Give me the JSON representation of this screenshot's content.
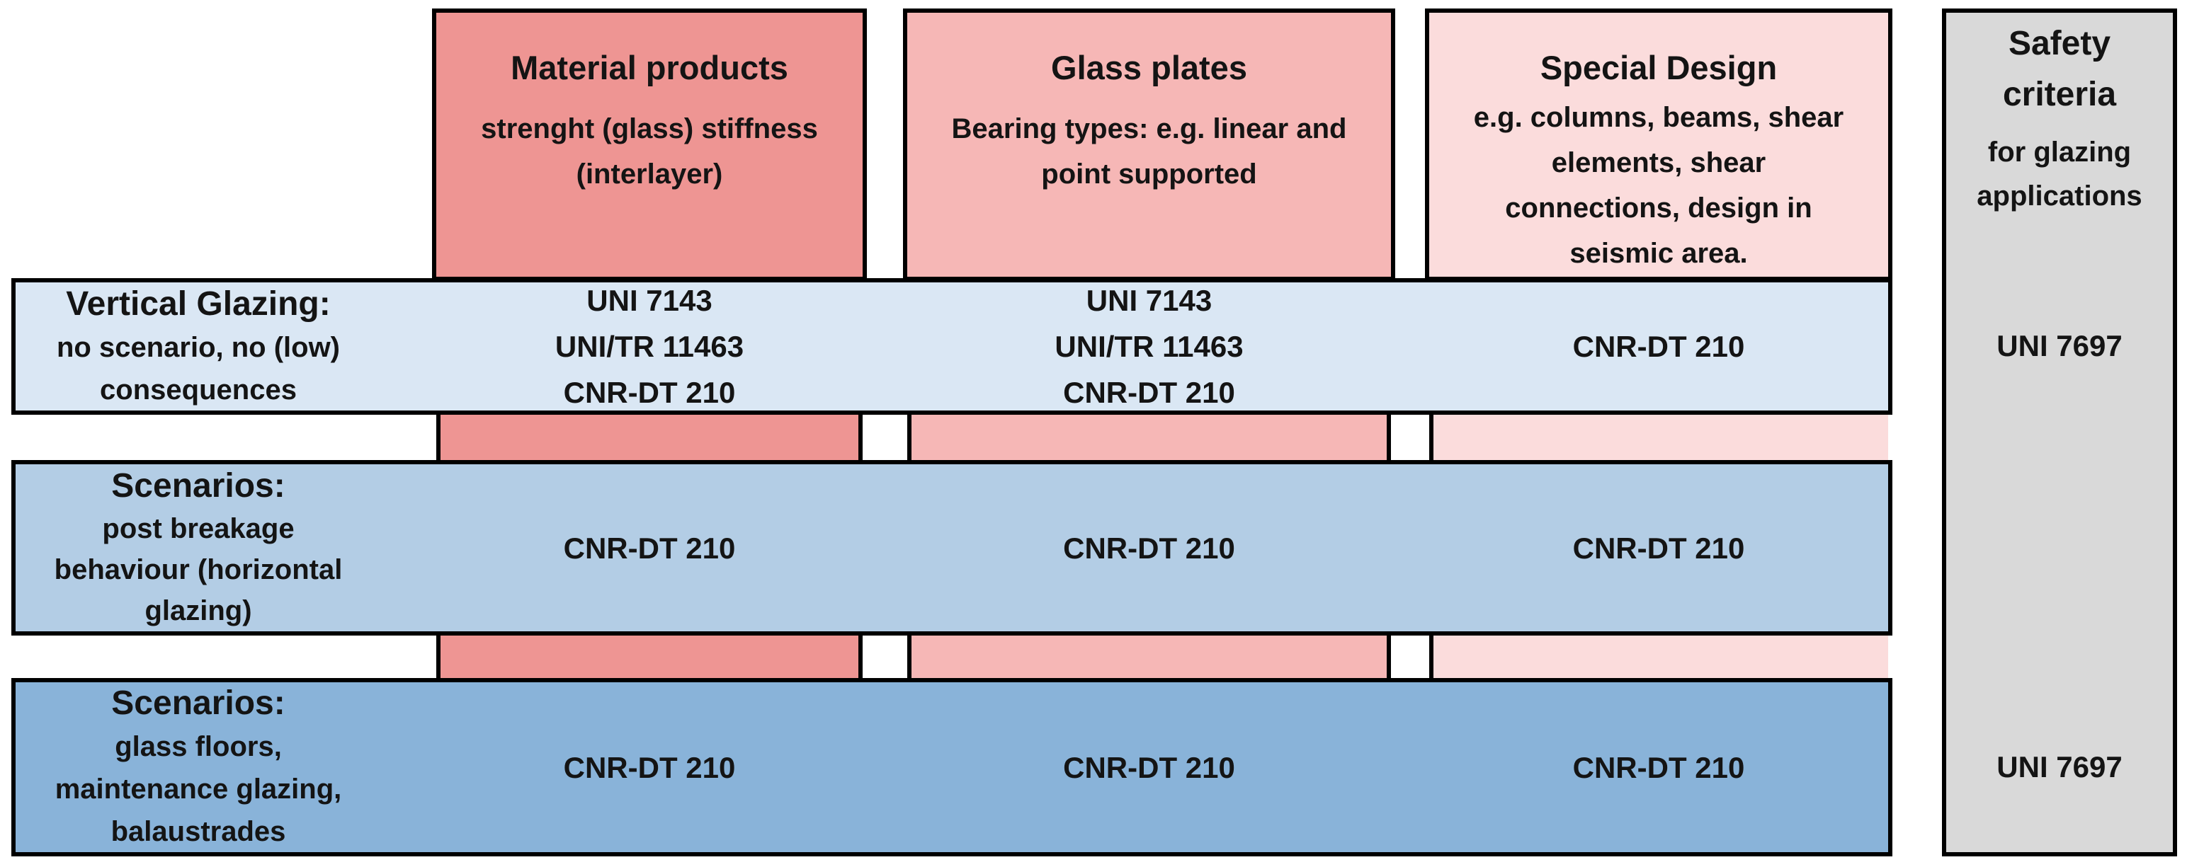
{
  "columns": [
    {
      "title": "Material products",
      "subtitle": "strenght (glass) stiffness (interlayer)"
    },
    {
      "title": "Glass plates",
      "subtitle": "Bearing types: e.g. linear and point supported"
    },
    {
      "title": "Special Design",
      "subtitle": "e.g. columns, beams, shear elements, shear connections, design in seismic area."
    }
  ],
  "safety": {
    "title": "Safety criteria",
    "subtitle": "for glazing applications"
  },
  "rows": [
    {
      "title": "Vertical Glazing:",
      "subtitle": "no scenario, no (low) consequences",
      "cells": [
        [
          "UNI 7143",
          "UNI/TR 11463",
          "CNR-DT 210"
        ],
        [
          "UNI 7143",
          "UNI/TR 11463",
          "CNR-DT 210"
        ],
        [
          "CNR-DT 210"
        ]
      ],
      "safety": "UNI 7697"
    },
    {
      "title": "Scenarios:",
      "subtitle": "post breakage behaviour (horizontal glazing)",
      "cells": [
        [
          "CNR-DT 210"
        ],
        [
          "CNR-DT 210"
        ],
        [
          "CNR-DT 210"
        ]
      ],
      "safety": ""
    },
    {
      "title": "Scenarios:",
      "subtitle": "glass floors, maintenance glazing, balaustrades",
      "cells": [
        [
          "CNR-DT 210"
        ],
        [
          "CNR-DT 210"
        ],
        [
          "CNR-DT 210"
        ]
      ],
      "safety": "UNI 7697"
    }
  ],
  "colors": {
    "material": "#ee9593",
    "glass": "#f6b7b6",
    "special": "#fbdcdc",
    "row_vertical": "#dae7f4",
    "row_post_breakage": "#b3cde5",
    "row_floors": "#89b3d9",
    "safety": "#d9d9d9"
  }
}
